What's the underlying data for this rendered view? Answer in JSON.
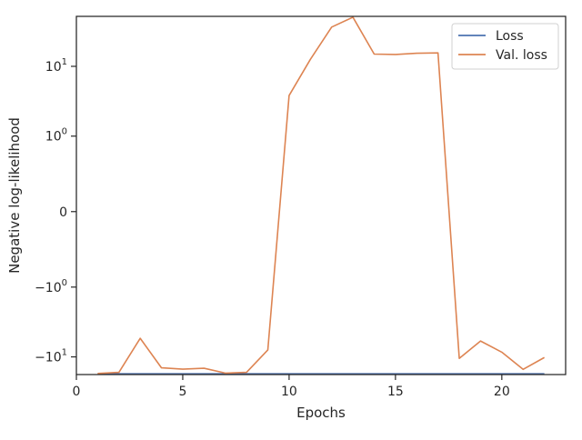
{
  "chart_data": {
    "type": "line",
    "xlabel": "Epochs",
    "ylabel": "Negative log-likelihood",
    "yscale": "symlog",
    "xlim": [
      0,
      23
    ],
    "ylim": [
      -17.6,
      49.3
    ],
    "grid": false,
    "legend_position": "top-right",
    "x_ticks": [
      0,
      5,
      10,
      15,
      20
    ],
    "y_ticks": [
      {
        "value": 10,
        "base": "10",
        "exp": "1",
        "sign": ""
      },
      {
        "value": 1,
        "base": "10",
        "exp": "0",
        "sign": ""
      },
      {
        "value": 0,
        "plain": "0"
      },
      {
        "value": -1,
        "base": "10",
        "exp": "0",
        "sign": "−"
      },
      {
        "value": -10,
        "base": "10",
        "exp": "1",
        "sign": "−"
      }
    ],
    "series": [
      {
        "name": "Loss",
        "color": "#4c72b0",
        "x": [
          1,
          2,
          3,
          4,
          5,
          6,
          7,
          8,
          9,
          10,
          11,
          12,
          13,
          14,
          15,
          16,
          17,
          18,
          19,
          20,
          21,
          22
        ],
        "y": [
          -17.2,
          -17.2,
          -17.2,
          -17.2,
          -17.2,
          -17.2,
          -17.2,
          -17.2,
          -17.2,
          -17.2,
          -17.2,
          -17.2,
          -17.2,
          -17.2,
          -17.2,
          -17.2,
          -17.2,
          -17.2,
          -17.2,
          -17.2,
          -17.2,
          -17.2
        ]
      },
      {
        "name": "Val. loss",
        "color": "#dd8452",
        "x": [
          1,
          2,
          3,
          4,
          5,
          6,
          7,
          8,
          9,
          10,
          11,
          12,
          13,
          14,
          15,
          16,
          17,
          18,
          19,
          20,
          21,
          22
        ],
        "y": [
          -17.0,
          -16.4,
          -5.5,
          -14.2,
          -14.8,
          -14.4,
          -16.8,
          -16.4,
          -8.0,
          3.9,
          12.5,
          35.0,
          48.0,
          14.8,
          14.6,
          15.2,
          15.4,
          -10.5,
          -6.0,
          -8.6,
          -14.9,
          -10.2
        ]
      }
    ]
  }
}
